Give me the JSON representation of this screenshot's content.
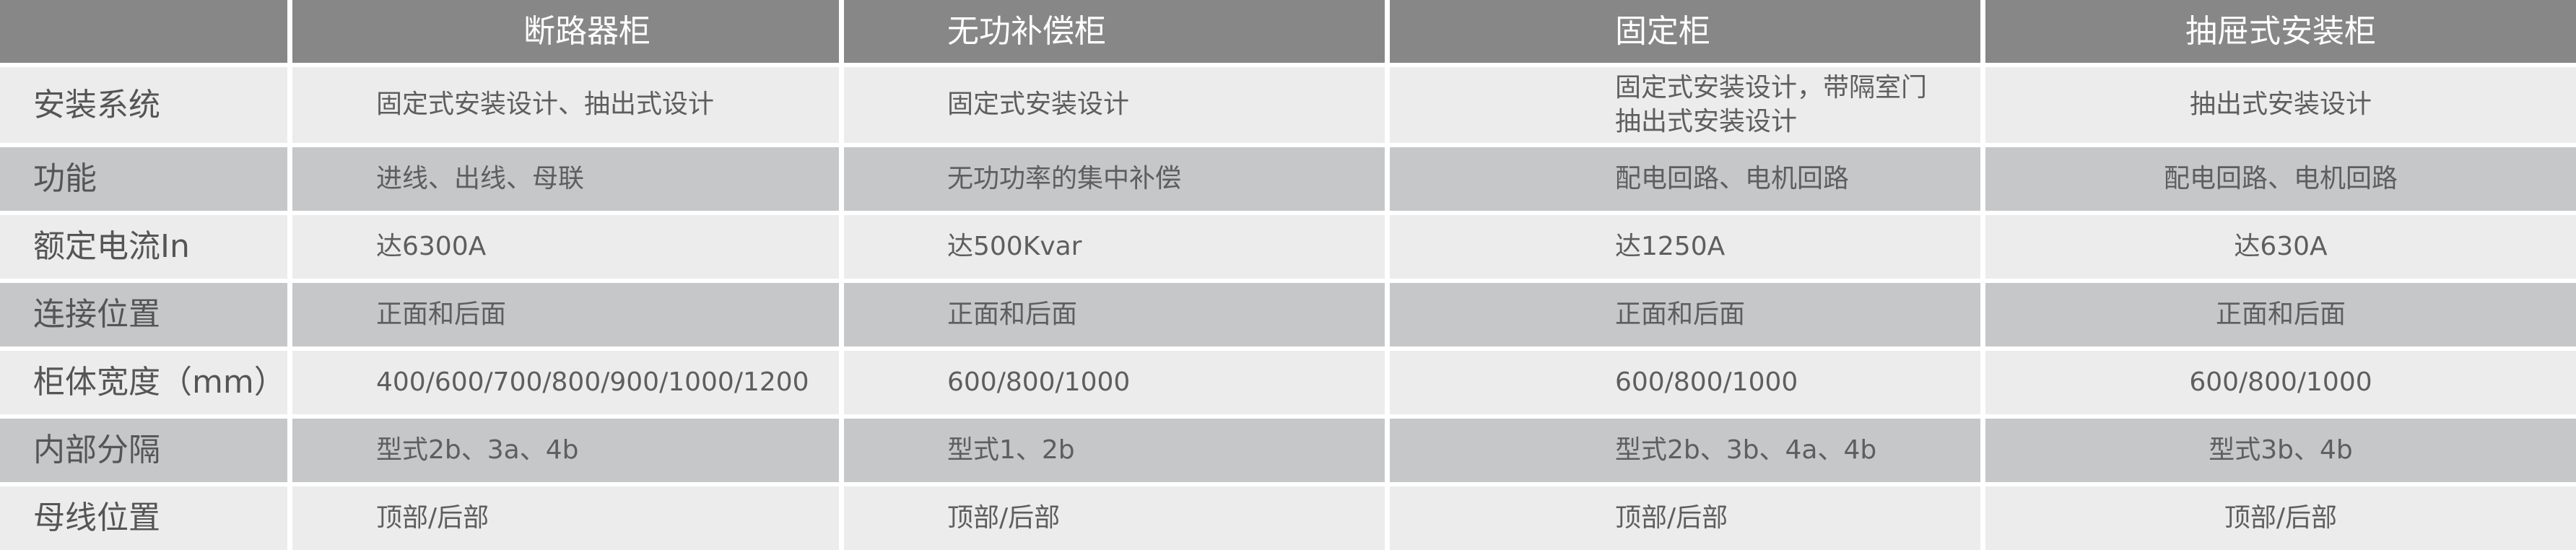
{
  "headers": [
    "",
    "断路器柜",
    "无功补偿柜",
    "固定柜",
    "抽屉式安装柜"
  ],
  "rows": [
    {
      "label": "安装系统",
      "cells": [
        "固定式安装设计、抽出式设计",
        "固定式安装设计",
        [
          "固定式安装设计，带隔室门",
          "抽出式安装设计"
        ],
        "抽出式安装设计"
      ]
    },
    {
      "label": "功能",
      "cells": [
        "进线、出线、母联",
        "无功功率的集中补偿",
        "配电回路、电机回路",
        "配电回路、电机回路"
      ]
    },
    {
      "label": "额定电流In",
      "cells": [
        "达6300A",
        "达500Kvar",
        "达1250A",
        "达630A"
      ]
    },
    {
      "label": "连接位置",
      "cells": [
        "正面和后面",
        "正面和后面",
        "正面和后面",
        "正面和后面"
      ]
    },
    {
      "label": "柜体宽度（mm）",
      "cells": [
        "400/600/700/800/900/1000/1200",
        "600/800/1000",
        "600/800/1000",
        "600/800/1000"
      ]
    },
    {
      "label": "内部分隔",
      "cells": [
        "型式2b、3a、4b",
        "型式1、2b",
        "型式2b、3b、4a、4b",
        "型式3b、4b"
      ]
    },
    {
      "label": "母线位置",
      "cells": [
        "顶部/后部",
        "顶部/后部",
        "顶部/后部",
        "顶部/后部"
      ]
    }
  ],
  "colors": {
    "header": "#878787",
    "row_light": "#ececec",
    "row_dark": "#c6c7c9",
    "text": "#5e5e5e"
  }
}
